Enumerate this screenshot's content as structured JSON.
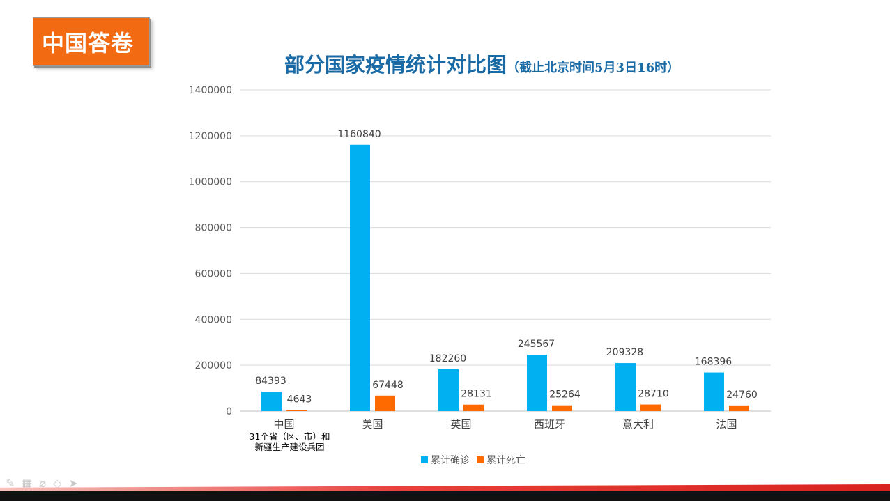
{
  "badge": {
    "label": "中国答卷"
  },
  "title": {
    "main": "部分国家疫情统计对比图",
    "sub": "（截止北京时间5月3日16时）"
  },
  "chart_data": {
    "type": "bar",
    "title": "部分国家疫情统计对比图（截止北京时间5月3日16时）",
    "categories": [
      "中国",
      "美国",
      "英国",
      "西班牙",
      "意大利",
      "法国"
    ],
    "category_note": [
      "31个省（区、市）和",
      "新疆生产建设兵团"
    ],
    "series": [
      {
        "name": "累计确诊",
        "color": "#00b0f0",
        "values": [
          84393,
          1160840,
          182260,
          245567,
          209328,
          168396
        ]
      },
      {
        "name": "累计死亡",
        "color": "#ff6a00",
        "values": [
          4643,
          67448,
          28131,
          25264,
          28710,
          24760
        ]
      }
    ],
    "yticks": [
      "0",
      "200000",
      "400000",
      "600000",
      "800000",
      "1000000",
      "1200000",
      "1400000"
    ],
    "ylim": [
      0,
      1400000
    ],
    "grid": true,
    "legend_position": "bottom"
  },
  "toolbar": {
    "icons": [
      "pen-icon",
      "slides-icon",
      "eraser-icon",
      "marker-icon",
      "pointer-icon"
    ]
  }
}
